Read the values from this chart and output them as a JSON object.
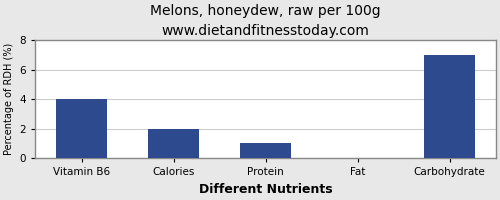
{
  "title": "Melons, honeydew, raw per 100g",
  "subtitle": "www.dietandfitnesstoday.com",
  "xlabel": "Different Nutrients",
  "ylabel": "Percentage of RDH (%)",
  "categories": [
    "Vitamin B6",
    "Calories",
    "Protein",
    "Fat",
    "Carbohydrate"
  ],
  "values": [
    4.0,
    2.0,
    1.0,
    0.0,
    7.0
  ],
  "bar_color": "#2e4a8e",
  "ylim": [
    0,
    8
  ],
  "yticks": [
    0,
    2,
    4,
    6,
    8
  ],
  "background_color": "#e8e8e8",
  "plot_bg_color": "#ffffff",
  "grid_color": "#cccccc",
  "title_fontsize": 10,
  "subtitle_fontsize": 8.5,
  "xlabel_fontsize": 9,
  "ylabel_fontsize": 7,
  "tick_fontsize": 7.5,
  "bar_width": 0.55
}
